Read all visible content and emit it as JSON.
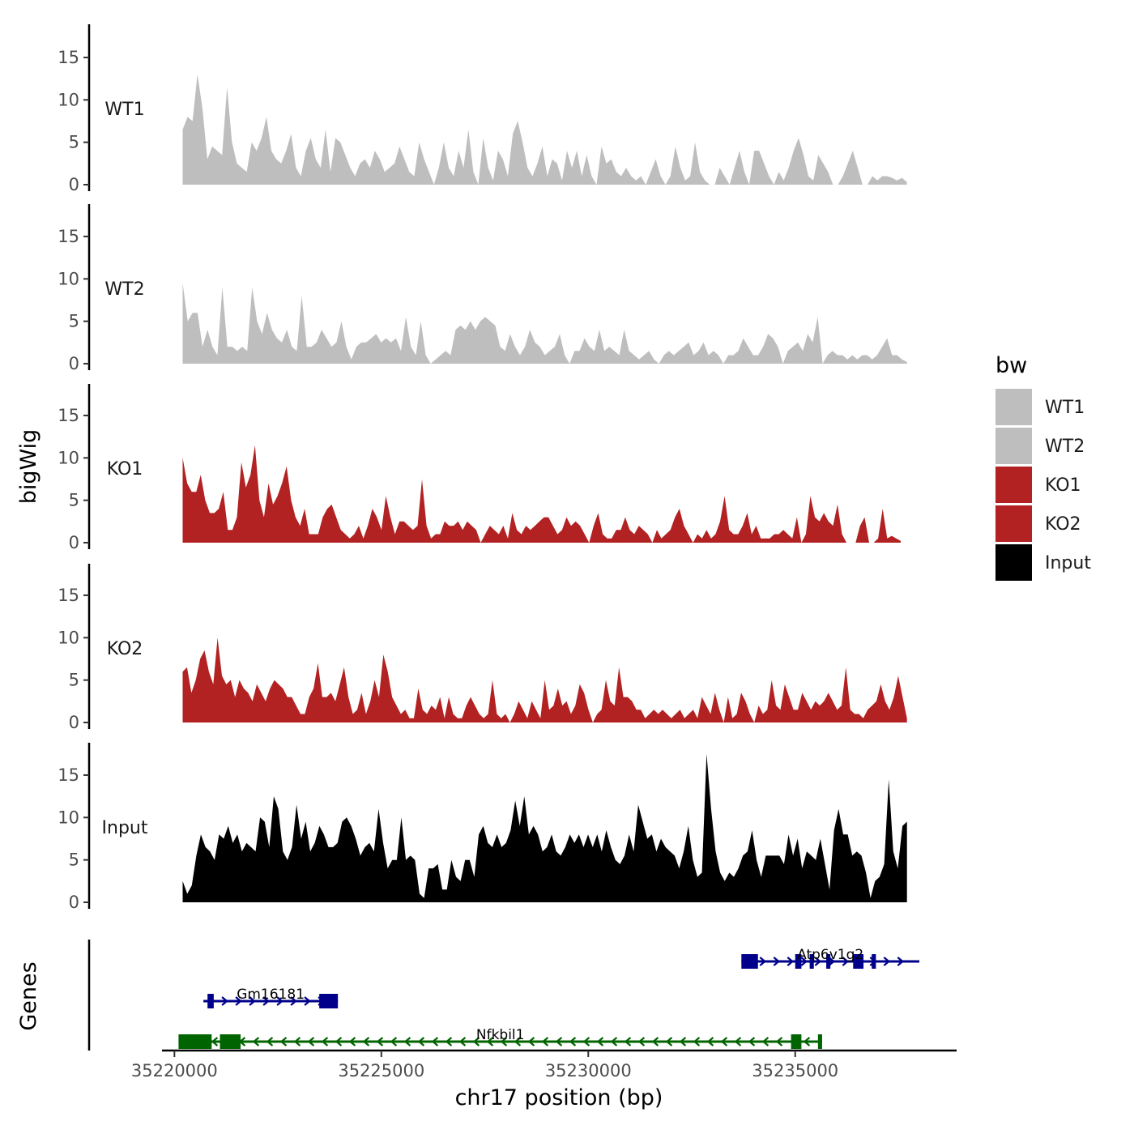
{
  "chart_data": {
    "type": "area",
    "ylabel": "bigWig",
    "genes_label": "Genes",
    "xlabel": "chr17 position (bp)",
    "xlim": [
      35219700,
      35238900
    ],
    "x_ticks": [
      35220000,
      35225000,
      35230000,
      35235000
    ],
    "x_tick_labels": [
      "35220000",
      "35225000",
      "35230000",
      "35235000"
    ],
    "ylim": [
      0,
      18.5
    ],
    "y_ticks": [
      0,
      5,
      10,
      15
    ],
    "y_tick_labels": [
      "0",
      "5",
      "10",
      "15"
    ],
    "legend": {
      "title": "bw",
      "position": "right",
      "entries": [
        {
          "label": "WT1",
          "color": "#bebebe"
        },
        {
          "label": "WT2",
          "color": "#bebebe"
        },
        {
          "label": "KO1",
          "color": "#b22222"
        },
        {
          "label": "KO2",
          "color": "#b22222"
        },
        {
          "label": "Input",
          "color": "#000000"
        }
      ]
    },
    "series": [
      {
        "name": "WT1",
        "color": "#bebebe",
        "x_start": 35220200,
        "x_end": 35237700,
        "values": [
          6.5,
          8,
          7.5,
          13,
          9,
          3,
          4.5,
          4,
          3.5,
          11.5,
          5,
          2.5,
          2,
          1.5,
          5,
          4,
          5.5,
          8,
          4,
          3,
          2.5,
          4,
          6,
          2,
          1,
          4,
          5.5,
          3,
          2,
          6.5,
          1.5,
          5.5,
          5,
          3.5,
          2,
          1,
          2.5,
          3,
          2,
          4,
          3,
          1.5,
          2,
          2.5,
          4.5,
          3,
          1.5,
          1,
          5,
          3,
          1.5,
          0,
          2,
          5,
          2,
          1,
          4,
          2,
          6.5,
          1.5,
          0,
          5.5,
          2,
          0.5,
          4,
          3,
          1,
          6,
          7.5,
          5,
          2,
          1,
          2.5,
          4.5,
          1,
          3,
          2.5,
          0.5,
          4,
          2,
          4,
          1,
          3.5,
          1,
          0,
          4.5,
          2.5,
          3,
          1.5,
          1,
          2,
          1,
          0.5,
          1,
          0,
          1.5,
          3,
          1,
          0,
          1,
          4.5,
          2,
          0.5,
          1,
          5,
          1.5,
          0.5,
          0,
          0,
          2,
          1,
          0,
          2,
          4,
          1.5,
          0,
          4,
          4,
          2.5,
          1,
          0,
          1.5,
          0.5,
          2,
          4,
          5.5,
          3.5,
          1,
          0.5,
          3.5,
          2.5,
          1.5,
          0,
          0,
          1,
          2.5,
          4,
          2,
          0,
          0,
          1,
          0.5,
          1,
          1,
          0.8,
          0.5,
          0.8,
          0.3
        ]
      },
      {
        "name": "WT2",
        "color": "#bebebe",
        "x_start": 35220200,
        "x_end": 35237700,
        "values": [
          9.5,
          5,
          6,
          6,
          2,
          4,
          2,
          1,
          9,
          2,
          2,
          1.5,
          2,
          1.5,
          9,
          5,
          3.5,
          6,
          4,
          3,
          2.5,
          4,
          2,
          1.5,
          8,
          2,
          2,
          2.5,
          4,
          3,
          2,
          2.5,
          5,
          2,
          0.5,
          2,
          2.5,
          2.5,
          3,
          3.5,
          2.5,
          3,
          2.5,
          3,
          1.5,
          5.5,
          2,
          1,
          5,
          1,
          0,
          0.5,
          1,
          1.5,
          1,
          4,
          4.5,
          4,
          5,
          4,
          5,
          5.5,
          5,
          4.5,
          2,
          1.5,
          3.5,
          2,
          1,
          2,
          4,
          2.5,
          2,
          1,
          1.5,
          2,
          3.5,
          1,
          0,
          1.5,
          1.5,
          3,
          2,
          1.5,
          4,
          1.5,
          2,
          1.5,
          1,
          4,
          1.5,
          1,
          0.5,
          1,
          1.5,
          0.5,
          0,
          1,
          1.5,
          1,
          1.5,
          2,
          2.5,
          1,
          1.5,
          2.5,
          1,
          1.5,
          1,
          0,
          1,
          1,
          1.5,
          3,
          2,
          1,
          1,
          2,
          3.5,
          3,
          2,
          0,
          1.5,
          2,
          2.5,
          1.5,
          3.5,
          2.5,
          5.5,
          0,
          1,
          1.5,
          1,
          1,
          0.5,
          1,
          0.5,
          1,
          1,
          0.5,
          1,
          2,
          3,
          1,
          1,
          0.5,
          0.2
        ]
      },
      {
        "name": "KO1",
        "color": "#b22222",
        "x_start": 35220200,
        "x_end": 35237550,
        "values": [
          10,
          7,
          6,
          6,
          8,
          5,
          3.5,
          3.5,
          4,
          6,
          1.5,
          1.5,
          3,
          9.5,
          6.5,
          8,
          11.5,
          5,
          3,
          7,
          4.5,
          5.5,
          7,
          9,
          5,
          3,
          2,
          4,
          1,
          1,
          1,
          3,
          4,
          4.5,
          3,
          1.5,
          1,
          0.5,
          1,
          2,
          0.5,
          2,
          4,
          3,
          1.5,
          5.5,
          3,
          1,
          2.5,
          2.5,
          2,
          1.5,
          2,
          7.5,
          2,
          0.5,
          1,
          1,
          2.5,
          2,
          2,
          2.5,
          1.5,
          2.5,
          2,
          1.5,
          0,
          1,
          2,
          1.5,
          1,
          2,
          0.5,
          3.5,
          1.5,
          1,
          2,
          1.5,
          2,
          2.5,
          3,
          3,
          2,
          1,
          1.5,
          3,
          2,
          2.5,
          2,
          1,
          0,
          2,
          3.5,
          1,
          0.5,
          0.5,
          1.5,
          1.5,
          3,
          1.5,
          1,
          2,
          1.5,
          1,
          0,
          1.5,
          0.5,
          1,
          1.5,
          3,
          4,
          2,
          1,
          0,
          1,
          0.5,
          1.5,
          0.5,
          1,
          2.5,
          5.5,
          1.5,
          1,
          1,
          2,
          3.5,
          1,
          2,
          0.5,
          0.5,
          0.5,
          1,
          1,
          1.5,
          1,
          0.5,
          3,
          0,
          1,
          5.5,
          3,
          2.5,
          3.5,
          2.5,
          2,
          4.5,
          1,
          0,
          0,
          0,
          2,
          3,
          0,
          0,
          0.5,
          4,
          0.5,
          0.8,
          0.5,
          0.2
        ]
      },
      {
        "name": "KO2",
        "color": "#b22222",
        "x_start": 35220200,
        "x_end": 35237700,
        "values": [
          6,
          6.5,
          3.5,
          5,
          7.5,
          8.5,
          6,
          4.5,
          10,
          5.5,
          4.5,
          5,
          3,
          5,
          4,
          3.5,
          2.5,
          4.5,
          3.5,
          2.5,
          4,
          5,
          4.5,
          4,
          3,
          3,
          2,
          1,
          1,
          3,
          4,
          7,
          3,
          3,
          3.5,
          2.5,
          4.5,
          6.5,
          3,
          1,
          1.5,
          3.5,
          1,
          2.5,
          5,
          3,
          8,
          6,
          3,
          2,
          1,
          1.5,
          0.5,
          0.5,
          4,
          1.5,
          1,
          2,
          1.5,
          3,
          0.5,
          3,
          1,
          0.5,
          0.5,
          2,
          3,
          2,
          1,
          0.5,
          1,
          5,
          1,
          0.5,
          1,
          0,
          1,
          2.5,
          1.5,
          0.5,
          2.5,
          1.5,
          0.5,
          5,
          1.5,
          2,
          4,
          2,
          2.5,
          1,
          2,
          4.5,
          3.5,
          1.5,
          0,
          1,
          1.5,
          5,
          2.5,
          2,
          6.5,
          3,
          3,
          2.5,
          1.5,
          1.5,
          0.5,
          1,
          1.5,
          1,
          1.5,
          1,
          0.5,
          1,
          1.5,
          0.5,
          1,
          1.5,
          0.5,
          3,
          2,
          1,
          3.5,
          1.5,
          0,
          3,
          0.5,
          1,
          3.5,
          2.5,
          1,
          0,
          2,
          1,
          1.5,
          5,
          2,
          1.5,
          4.5,
          3,
          1.5,
          1.5,
          3.5,
          2.5,
          1.5,
          2.5,
          2,
          2.5,
          3.5,
          2.5,
          1.5,
          2,
          6.5,
          1.5,
          1,
          1,
          0.5,
          1.5,
          2,
          2.5,
          4.5,
          2.5,
          1.5,
          3,
          5.5,
          3,
          0.5
        ]
      },
      {
        "name": "Input",
        "color": "#000000",
        "x_start": 35220200,
        "x_end": 35237700,
        "values": [
          2.5,
          1,
          2,
          5.5,
          8,
          6.5,
          6,
          5,
          8,
          7.5,
          9,
          7,
          8,
          6,
          7,
          6.5,
          6,
          10,
          9.5,
          6.5,
          12.5,
          11,
          6,
          5,
          6.5,
          11.5,
          7.5,
          9.5,
          6,
          7,
          9,
          8,
          6.5,
          6.5,
          7,
          9.5,
          10,
          9,
          7.5,
          5.5,
          6.5,
          7,
          6,
          11,
          7,
          4,
          5,
          5,
          10,
          5,
          5.5,
          5,
          1,
          0.5,
          4,
          4,
          4.5,
          1.5,
          1.5,
          5,
          3,
          2.5,
          5,
          5,
          3,
          8,
          9,
          7,
          6.5,
          8,
          6.5,
          7,
          8.5,
          12,
          9,
          12.5,
          8,
          9,
          8,
          6,
          6.5,
          8,
          6,
          5.5,
          6.5,
          8,
          7,
          8,
          6.5,
          8,
          6.5,
          8,
          6,
          8.5,
          6.5,
          5,
          4.5,
          5.5,
          8,
          6,
          11.5,
          9.5,
          7.5,
          8,
          6,
          7.5,
          6.5,
          6,
          5.5,
          4,
          6,
          9,
          5,
          3,
          3.5,
          17.5,
          11,
          6,
          3.5,
          2.5,
          3.5,
          3,
          4,
          5.5,
          6,
          8.5,
          5,
          3,
          5.5,
          5.5,
          5.5,
          5.5,
          4.5,
          8,
          5.5,
          7.5,
          4,
          6,
          5.5,
          5,
          7.5,
          4.5,
          1.5,
          8.5,
          11,
          8,
          8,
          5.5,
          6,
          5.5,
          3.5,
          0.5,
          2.5,
          3,
          4.5,
          14.5,
          6,
          4,
          9,
          9.5
        ]
      }
    ],
    "genes": [
      {
        "name": "Atp6v1g2",
        "strand": "+",
        "color": "#00008b",
        "start": 35233700,
        "end": 35238000,
        "exons": [
          [
            35233700,
            35234100
          ],
          [
            35235000,
            35235150
          ],
          [
            35235350,
            35235450
          ],
          [
            35235750,
            35235850
          ],
          [
            35236400,
            35236650
          ],
          [
            35236850,
            35236950
          ]
        ]
      },
      {
        "name": "Gm16181",
        "strand": "+",
        "color": "#00008b",
        "start": 35220700,
        "end": 35223950,
        "exons": [
          [
            35220800,
            35220950
          ],
          [
            35223500,
            35223950
          ]
        ]
      },
      {
        "name": "Nfkbil1",
        "strand": "-",
        "color": "#006400",
        "start": 35220100,
        "end": 35235650,
        "exons": [
          [
            35220100,
            35220900
          ],
          [
            35221100,
            35221600
          ],
          [
            35234900,
            35235150
          ],
          [
            35235550,
            35235650
          ]
        ]
      }
    ]
  }
}
